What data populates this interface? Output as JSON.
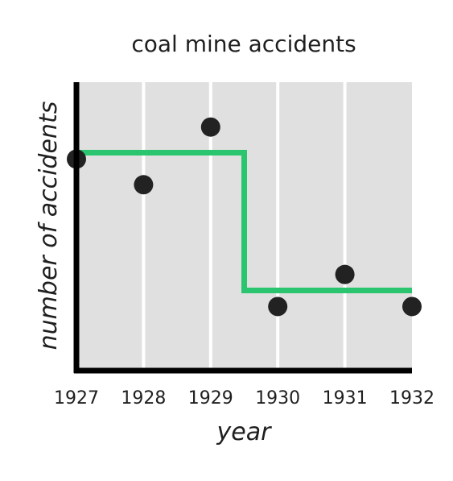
{
  "chart_data": {
    "type": "scatter",
    "title": "coal mine accidents",
    "xlabel": "year",
    "ylabel": "number of accidents",
    "x": [
      1927,
      1928,
      1929,
      1930,
      1931,
      1932
    ],
    "points": [
      {
        "x": 1927,
        "y": 6.6
      },
      {
        "x": 1928,
        "y": 5.8
      },
      {
        "x": 1929,
        "y": 7.6
      },
      {
        "x": 1930,
        "y": 2.0
      },
      {
        "x": 1931,
        "y": 3.0
      },
      {
        "x": 1932,
        "y": 2.0
      }
    ],
    "step_line": [
      {
        "x_start": 1927,
        "x_end": 1929.5,
        "y": 6.8
      },
      {
        "x_start": 1929.5,
        "x_end": 1932,
        "y": 2.5
      }
    ],
    "xlim": [
      1927,
      1932
    ],
    "ylim": [
      0,
      9
    ],
    "grid": "vertical",
    "colors": {
      "background": "#dfe0df",
      "grid": "#ffffff",
      "axis": "#000000",
      "point": "#222222",
      "line": "#2cc56f"
    }
  }
}
